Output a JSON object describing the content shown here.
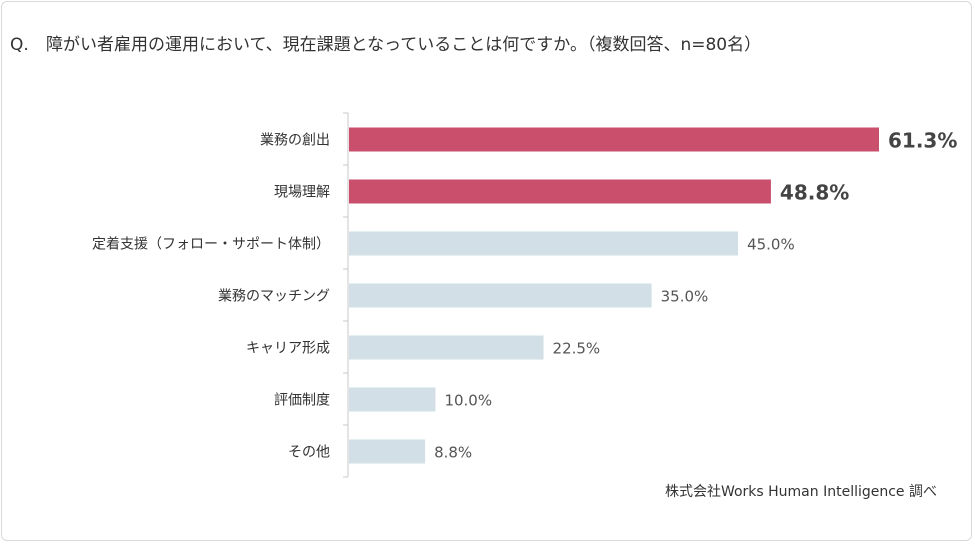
{
  "question": {
    "prefix": "Q.",
    "text": "障がい者雇用の運用において、現在課題となっていることは何ですか。（複数回答、n=80名）"
  },
  "source": "株式会社Works Human Intelligence 調べ",
  "colors": {
    "highlight": "#c94f6d",
    "normal": "#d2dfe6",
    "axis": "#c8c8c8"
  },
  "chart_data": {
    "type": "bar",
    "orientation": "horizontal",
    "unit": "%",
    "xlim": [
      0,
      61.3
    ],
    "categories": [
      "業務の創出",
      "現場理解",
      "定着支援（フォロー・サポート体制）",
      "業務のマッチング",
      "キャリア形成",
      "評価制度",
      "その他"
    ],
    "values": [
      61.3,
      48.8,
      45.0,
      35.0,
      22.5,
      10.0,
      8.8
    ],
    "labels": [
      "61.3%",
      "48.8%",
      "45.0%",
      "35.0%",
      "22.5%",
      "10.0%",
      "8.8%"
    ],
    "highlighted": [
      true,
      true,
      false,
      false,
      false,
      false,
      false
    ]
  }
}
